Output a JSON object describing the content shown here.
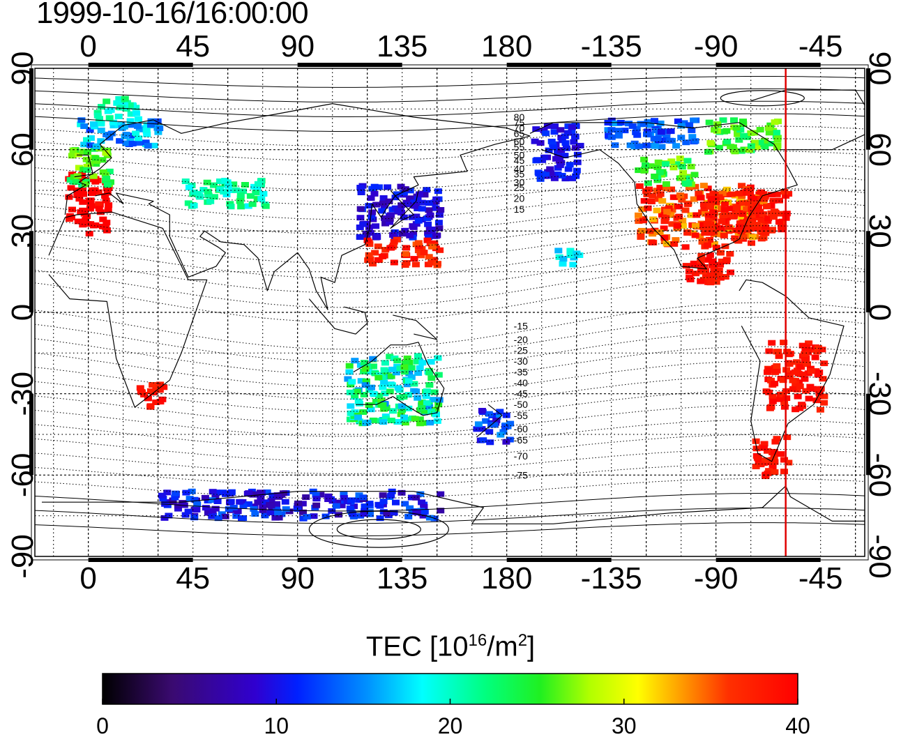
{
  "title": "1999-10-16/16:00:00",
  "map": {
    "projection": "cylindrical equidistant",
    "lon_range": [
      -23,
      334
    ],
    "lat_range": [
      -90,
      90
    ],
    "x_ticks": [
      {
        "lon": 0,
        "label": "0"
      },
      {
        "lon": 45,
        "label": "45"
      },
      {
        "lon": 90,
        "label": "90"
      },
      {
        "lon": 135,
        "label": "135"
      },
      {
        "lon": 180,
        "label": "180"
      },
      {
        "lon": 225,
        "label": "-135"
      },
      {
        "lon": 270,
        "label": "-90"
      },
      {
        "lon": 315,
        "label": "-45"
      }
    ],
    "y_ticks": [
      {
        "lat": 90,
        "label": "90"
      },
      {
        "lat": 60,
        "label": "60"
      },
      {
        "lat": 30,
        "label": "30"
      },
      {
        "lat": 0,
        "label": "0"
      },
      {
        "lat": -30,
        "label": "-30"
      },
      {
        "lat": -60,
        "label": "-60"
      },
      {
        "lat": -90,
        "label": "-90"
      }
    ],
    "grid": "dotted every 15 degrees, dashed every 30 degrees",
    "magnetic_latitude_labels": [
      "80",
      "75",
      "70",
      "65",
      "60",
      "55",
      "50",
      "45",
      "40",
      "35",
      "30",
      "25",
      "20",
      "15",
      "-15",
      "-20",
      "-25",
      "-30",
      "-35",
      "-40",
      "-45",
      "-50",
      "-55",
      "-60",
      "-65",
      "-70",
      "-75"
    ],
    "terminator_lon": 300,
    "terminator_color": "#e00000"
  },
  "colorbar": {
    "label_main": "TEC  [10",
    "label_exp1": "16",
    "label_mid": "/m",
    "label_exp2": "2",
    "label_end": "]",
    "min": 0,
    "max": 40,
    "ticks": [
      "0",
      "10",
      "20",
      "30",
      "40"
    ]
  }
}
